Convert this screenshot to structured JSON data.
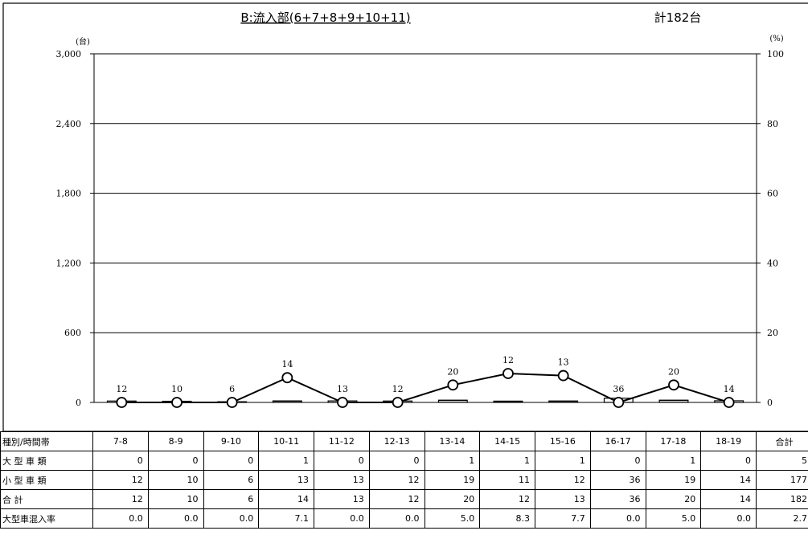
{
  "chart_data": {
    "type": "bar+line",
    "title": "B:流入部(6+7+8+9+10+11)",
    "total_label": "計182台",
    "y_left_unit": "(台)",
    "y_right_unit": "(%)",
    "ylim_left": [
      0,
      3000
    ],
    "ylim_right": [
      0,
      100
    ],
    "y_left_ticks": [
      "0",
      "600",
      "1,200",
      "1,800",
      "2,400",
      "3,000"
    ],
    "y_right_ticks": [
      "0",
      "20",
      "40",
      "60",
      "80",
      "100"
    ],
    "categories": [
      "7-8",
      "8-9",
      "9-10",
      "10-11",
      "11-12",
      "12-13",
      "13-14",
      "14-15",
      "15-16",
      "16-17",
      "17-18",
      "18-19"
    ],
    "series": [
      {
        "name": "大型車類",
        "type": "bar",
        "values": [
          0,
          0,
          0,
          1,
          0,
          0,
          1,
          1,
          1,
          0,
          1,
          0
        ]
      },
      {
        "name": "小型車類",
        "type": "bar",
        "values": [
          12,
          10,
          6,
          13,
          13,
          12,
          19,
          11,
          12,
          36,
          19,
          14
        ]
      },
      {
        "name": "合計",
        "type": "bar",
        "values": [
          12,
          10,
          6,
          14,
          13,
          12,
          20,
          12,
          13,
          36,
          20,
          14
        ]
      },
      {
        "name": "大型車混入率",
        "type": "line",
        "axis": "right",
        "values": [
          0.0,
          0.0,
          0.0,
          7.1,
          0.0,
          0.0,
          5.0,
          8.3,
          7.7,
          0.0,
          5.0,
          0.0
        ]
      }
    ],
    "grid": true
  },
  "table": {
    "header_label": "種別/時間帯",
    "total_header": "合計",
    "rows": [
      {
        "label": "大 型 車 類",
        "values": [
          "0",
          "0",
          "0",
          "1",
          "0",
          "0",
          "1",
          "1",
          "1",
          "0",
          "1",
          "0"
        ],
        "total": "5"
      },
      {
        "label": "小 型 車 類",
        "values": [
          "12",
          "10",
          "6",
          "13",
          "13",
          "12",
          "19",
          "11",
          "12",
          "36",
          "19",
          "14"
        ],
        "total": "177"
      },
      {
        "label": "合 計",
        "values": [
          "12",
          "10",
          "6",
          "14",
          "13",
          "12",
          "20",
          "12",
          "13",
          "36",
          "20",
          "14"
        ],
        "total": "182"
      },
      {
        "label": "大型車混入率",
        "values": [
          "0.0",
          "0.0",
          "0.0",
          "7.1",
          "0.0",
          "0.0",
          "5.0",
          "8.3",
          "7.7",
          "0.0",
          "5.0",
          "0.0"
        ],
        "total": "2.7"
      }
    ]
  }
}
